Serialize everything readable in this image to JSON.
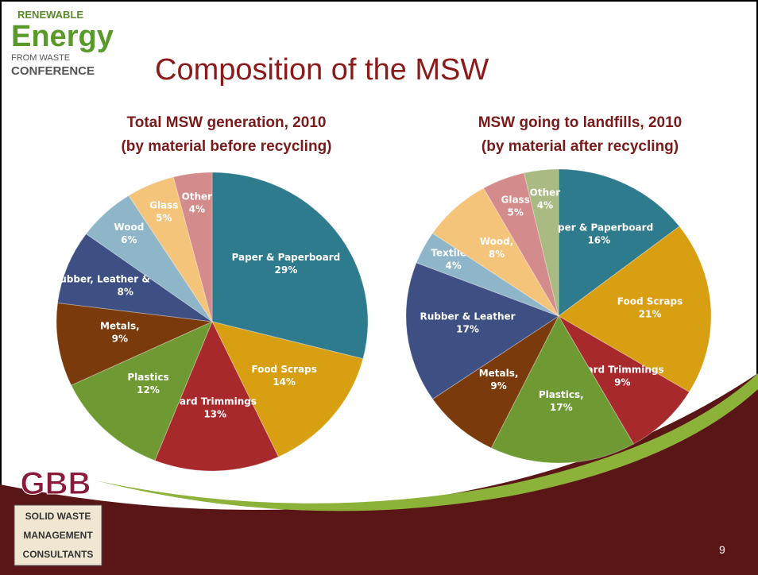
{
  "slide": {
    "title": "Composition of the MSW",
    "logo_top": [
      "RENEWABLE",
      "Energy",
      "FROM WASTE",
      "CONFERENCE"
    ],
    "logo_bottom": [
      "GBB",
      "SOLID WASTE",
      "MANAGEMENT",
      "CONSULTANTS"
    ],
    "page_number": "9"
  },
  "chart_data": [
    {
      "type": "pie",
      "title": "Total MSW generation, 2010",
      "subtitle": "(by material before recycling)",
      "categories": [
        "Paper & Paperboard",
        "Food Scraps",
        "Yard Trimmings",
        "Plastics",
        "Metals,",
        "Rubber, Leather & Textiles,",
        "Wood",
        "Glass",
        "Other"
      ],
      "values": [
        29,
        14,
        13,
        12,
        9,
        8,
        6,
        5,
        4
      ],
      "value_labels": [
        "29%",
        "14%",
        "13%",
        "12%",
        "9%",
        "8%",
        "6%",
        "5%",
        "4%"
      ],
      "colors": [
        "#2f7b8e",
        "#d89f12",
        "#a8292b",
        "#6f9a33",
        "#7b3a0b",
        "#3e5083",
        "#8fb5c9",
        "#f5c47b",
        "#d48b8b"
      ]
    },
    {
      "type": "pie",
      "title": "MSW going to landfills, 2010",
      "subtitle": "(by material after recycling)",
      "categories": [
        "Paper & Paperboard",
        "Food Scraps",
        "Yard Trimmings",
        "Plastics,",
        "Metals,",
        "Rubber & Leather",
        "Textiles,",
        "Wood,",
        "Glass",
        "Other"
      ],
      "values": [
        16,
        21,
        9,
        17,
        9,
        17,
        4,
        8,
        5,
        4
      ],
      "value_labels": [
        "16%",
        "21%",
        "9%",
        "17%",
        "9%",
        "17%",
        "4%",
        "8%",
        "5%",
        "4%"
      ],
      "colors": [
        "#2f7b8e",
        "#d89f12",
        "#a8292b",
        "#6f9a33",
        "#7b3a0b",
        "#3e5083",
        "#8fb5c9",
        "#f5c47b",
        "#d48b8b",
        "#a9ba82"
      ]
    }
  ]
}
